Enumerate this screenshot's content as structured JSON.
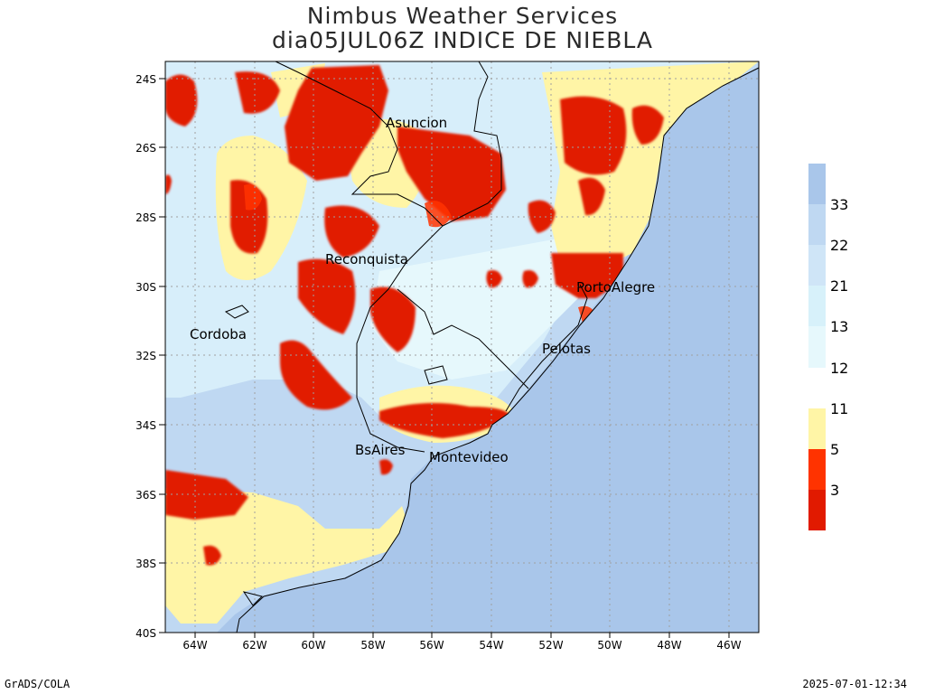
{
  "header": {
    "title_line1": "Nimbus Weather Services",
    "title_line2": "dia05JUL06Z INDICE DE NIEBLA"
  },
  "map": {
    "lat_ticks": [
      "24S",
      "26S",
      "28S",
      "30S",
      "32S",
      "34S",
      "36S",
      "38S",
      "40S"
    ],
    "lon_ticks": [
      "64W",
      "62W",
      "60W",
      "58W",
      "56W",
      "54W",
      "52W",
      "50W",
      "48W",
      "46W"
    ],
    "cities": {
      "asuncion": "Asuncion",
      "reconquista": "Reconquista",
      "cordoba": "Cordoba",
      "portoalegre": "PortoAlegre",
      "pelotas": "Pelotas",
      "bsaires": "BsAires",
      "montevideo": "Montevideo"
    },
    "colors": {
      "ocean": "#a9c6ea",
      "high": "#a9c6ea",
      "mid_high": "#bfd8f2",
      "mid": "#d7eefa",
      "low_mid": "#e6f8fc",
      "yellow": "#fff5a6",
      "orange_red": "#ff3300",
      "red": "#e11a00",
      "grid": "#a0a0a0"
    }
  },
  "colorbar": {
    "labels": [
      "33",
      "22",
      "21",
      "13",
      "12",
      "11",
      "5",
      "3"
    ]
  },
  "footer": {
    "left": "GrADS/COLA",
    "right": "2025-07-01-12:34"
  }
}
